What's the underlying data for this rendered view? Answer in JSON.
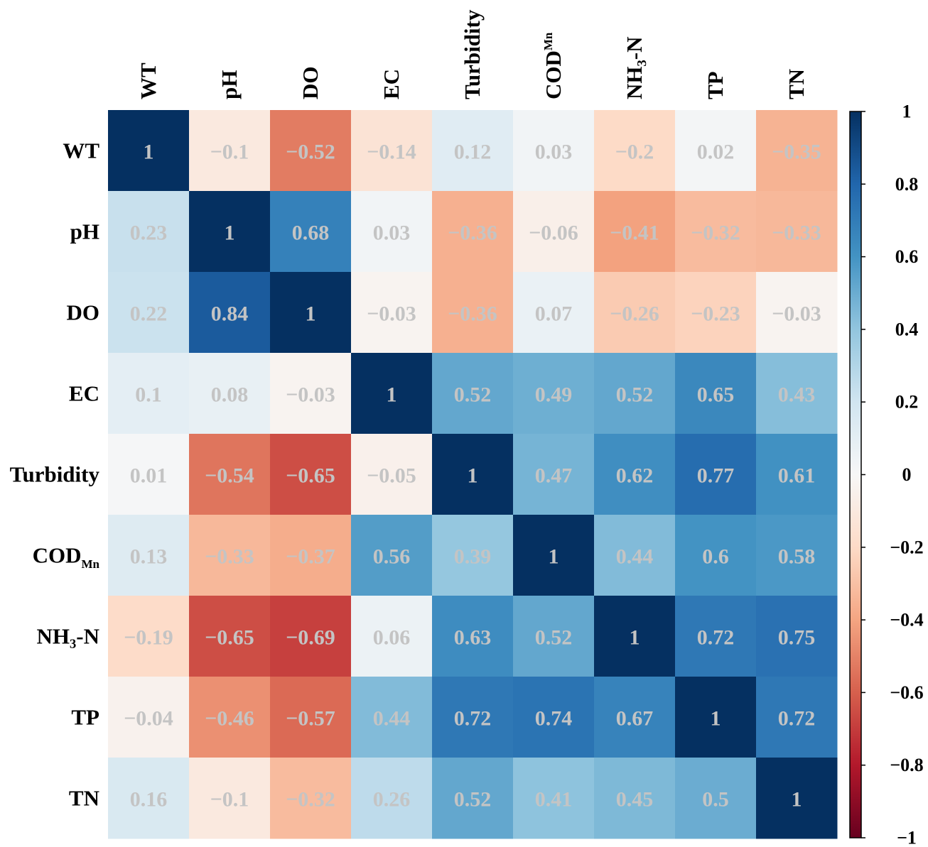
{
  "chart_data": {
    "type": "heatmap",
    "title": "",
    "labels": [
      {
        "main": "WT",
        "sub": ""
      },
      {
        "main": "pH",
        "sub": ""
      },
      {
        "main": "DO",
        "sub": ""
      },
      {
        "main": "EC",
        "sub": ""
      },
      {
        "main": "Turbidity",
        "sub": ""
      },
      {
        "main": "COD",
        "sub": "Mn"
      },
      {
        "main": "NH₃-N",
        "sub": ""
      },
      {
        "main": "TP",
        "sub": ""
      },
      {
        "main": "TN",
        "sub": ""
      }
    ],
    "values": [
      [
        1,
        -0.1,
        -0.52,
        -0.14,
        0.12,
        0.03,
        -0.2,
        0.02,
        -0.35
      ],
      [
        0.23,
        1,
        0.68,
        0.03,
        -0.36,
        -0.06,
        -0.41,
        -0.32,
        -0.33
      ],
      [
        0.22,
        0.84,
        1,
        -0.03,
        -0.36,
        0.07,
        -0.26,
        -0.23,
        -0.03
      ],
      [
        0.1,
        0.08,
        -0.03,
        1,
        0.52,
        0.49,
        0.52,
        0.65,
        0.43
      ],
      [
        0.01,
        -0.54,
        -0.65,
        -0.05,
        1,
        0.47,
        0.62,
        0.77,
        0.61
      ],
      [
        0.13,
        -0.33,
        -0.37,
        0.56,
        0.39,
        1,
        0.44,
        0.6,
        0.58
      ],
      [
        -0.19,
        -0.65,
        -0.69,
        0.06,
        0.63,
        0.52,
        1,
        0.72,
        0.75
      ],
      [
        -0.04,
        -0.46,
        -0.57,
        0.44,
        0.72,
        0.74,
        0.67,
        1,
        0.72
      ],
      [
        0.16,
        -0.1,
        -0.32,
        0.26,
        0.52,
        0.41,
        0.45,
        0.5,
        1
      ]
    ],
    "colormap": "RdBu",
    "colormap_stops": [
      "#67001f",
      "#b2182b",
      "#d6604d",
      "#f4a582",
      "#fddbc7",
      "#f7f7f7",
      "#d1e5f0",
      "#92c5de",
      "#4393c3",
      "#2166ac",
      "#053061"
    ],
    "vmin": -1,
    "vmax": 1,
    "colorbar_ticks": [
      1,
      0.8,
      0.6,
      0.4,
      0.2,
      0,
      -0.2,
      -0.4,
      -0.6,
      -0.8,
      -1
    ],
    "colorbar_tick_labels": [
      "1",
      "0.8",
      "0.6",
      "0.4",
      "0.2",
      "0",
      "−0.2",
      "−0.4",
      "−0.6",
      "−0.8",
      "−1"
    ],
    "colorbar_placement": "right"
  }
}
